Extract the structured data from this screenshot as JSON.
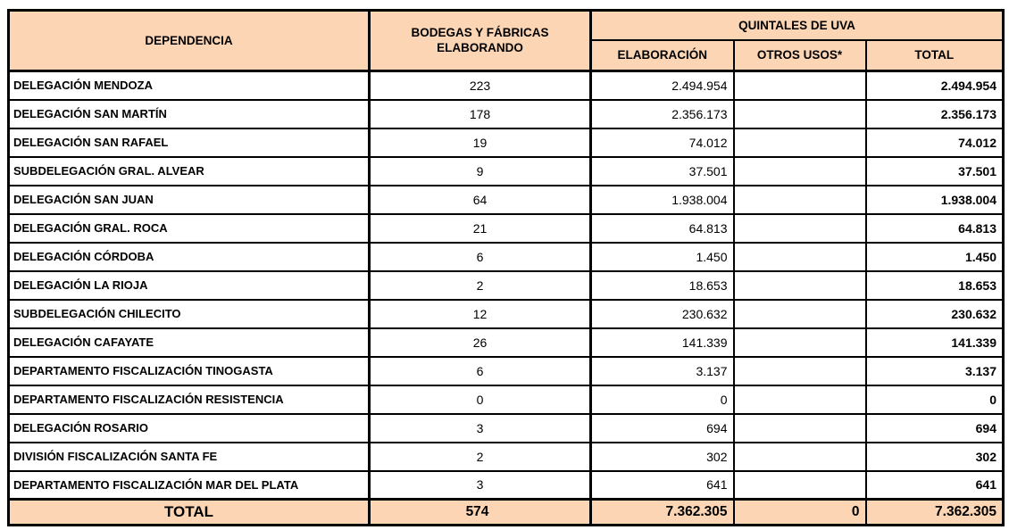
{
  "colors": {
    "header_bg": "#FBD5B4",
    "border": "#000000",
    "text": "#000000",
    "page_bg": "#FFFFFF"
  },
  "table": {
    "columns": {
      "dependencia": "DEPENDENCIA",
      "bodegas": "BODEGAS Y FÁBRICAS ELABORANDO",
      "quintales_group": "QUINTALES DE UVA",
      "elaboracion": "ELABORACIÓN",
      "otros_usos": "OTROS USOS*",
      "total": "TOTAL"
    },
    "rows": [
      {
        "dependencia": "DELEGACIÓN MENDOZA",
        "bodegas": "223",
        "elaboracion": "2.494.954",
        "otros_usos": "",
        "total": "2.494.954"
      },
      {
        "dependencia": "DELEGACIÓN SAN MARTÍN",
        "bodegas": "178",
        "elaboracion": "2.356.173",
        "otros_usos": "",
        "total": "2.356.173"
      },
      {
        "dependencia": "DELEGACIÓN SAN RAFAEL",
        "bodegas": "19",
        "elaboracion": "74.012",
        "otros_usos": "",
        "total": "74.012"
      },
      {
        "dependencia": "SUBDELEGACIÓN GRAL. ALVEAR",
        "bodegas": "9",
        "elaboracion": "37.501",
        "otros_usos": "",
        "total": "37.501"
      },
      {
        "dependencia": "DELEGACIÓN SAN JUAN",
        "bodegas": "64",
        "elaboracion": "1.938.004",
        "otros_usos": "",
        "total": "1.938.004"
      },
      {
        "dependencia": "DELEGACIÓN GRAL. ROCA",
        "bodegas": "21",
        "elaboracion": "64.813",
        "otros_usos": "",
        "total": "64.813"
      },
      {
        "dependencia": "DELEGACIÓN CÓRDOBA",
        "bodegas": "6",
        "elaboracion": "1.450",
        "otros_usos": "",
        "total": "1.450"
      },
      {
        "dependencia": "DELEGACIÓN LA RIOJA",
        "bodegas": "2",
        "elaboracion": "18.653",
        "otros_usos": "",
        "total": "18.653"
      },
      {
        "dependencia": "SUBDELEGACIÓN CHILECITO",
        "bodegas": "12",
        "elaboracion": "230.632",
        "otros_usos": "",
        "total": "230.632"
      },
      {
        "dependencia": "DELEGACIÓN CAFAYATE",
        "bodegas": "26",
        "elaboracion": "141.339",
        "otros_usos": "",
        "total": "141.339"
      },
      {
        "dependencia": "DEPARTAMENTO FISCALIZACIÓN TINOGASTA",
        "bodegas": "6",
        "elaboracion": "3.137",
        "otros_usos": "",
        "total": "3.137"
      },
      {
        "dependencia": "DEPARTAMENTO FISCALIZACIÓN RESISTENCIA",
        "bodegas": "0",
        "elaboracion": "0",
        "otros_usos": "",
        "total": "0"
      },
      {
        "dependencia": "DELEGACIÓN ROSARIO",
        "bodegas": "3",
        "elaboracion": "694",
        "otros_usos": "",
        "total": "694"
      },
      {
        "dependencia": "DIVISIÓN FISCALIZACIÓN SANTA FE",
        "bodegas": "2",
        "elaboracion": "302",
        "otros_usos": "",
        "total": "302"
      },
      {
        "dependencia": "DEPARTAMENTO FISCALIZACIÓN MAR DEL PLATA",
        "bodegas": "3",
        "elaboracion": "641",
        "otros_usos": "",
        "total": "641"
      }
    ],
    "total_row": {
      "label": "TOTAL",
      "bodegas": "574",
      "elaboracion": "7.362.305",
      "otros_usos": "0",
      "total": "7.362.305"
    }
  }
}
